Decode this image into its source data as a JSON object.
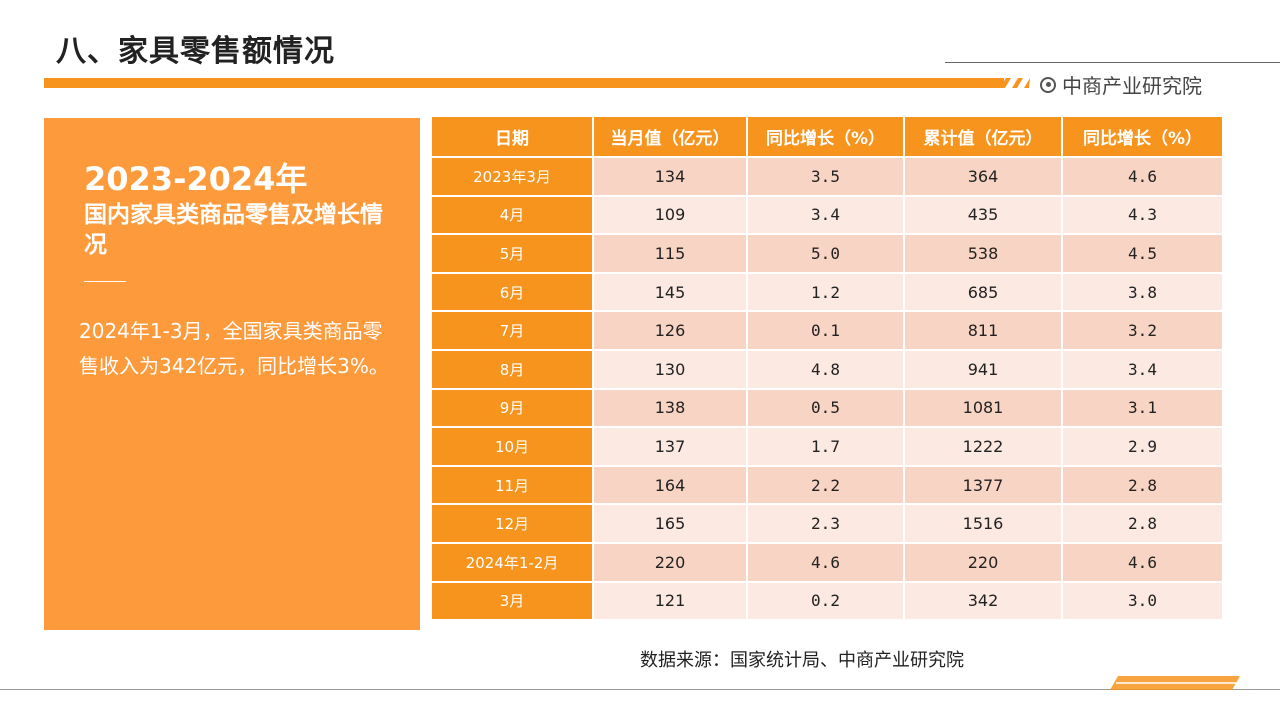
{
  "header": {
    "title": "八、家具零售额情况",
    "brand": "中商产业研究院"
  },
  "panel": {
    "years": "2023-2024年",
    "subtitle": "国内家具类商品零售及增长情况",
    "body": "2024年1-3月，全国家具类商品零售收入为342亿元，同比增长3%。"
  },
  "table": {
    "headers": [
      "日期",
      "当月值（亿元）",
      "同比增长（%）",
      "累计值（亿元）",
      "同比增长（%）"
    ],
    "rows": [
      [
        "2023年3月",
        "134",
        "3.5",
        "364",
        "4.6"
      ],
      [
        "4月",
        "109",
        "3.4",
        "435",
        "4.3"
      ],
      [
        "5月",
        "115",
        "5.0",
        "538",
        "4.5"
      ],
      [
        "6月",
        "145",
        "1.2",
        "685",
        "3.8"
      ],
      [
        "7月",
        "126",
        "0.1",
        "811",
        "3.2"
      ],
      [
        "8月",
        "130",
        "4.8",
        "941",
        "3.4"
      ],
      [
        "9月",
        "138",
        "0.5",
        "1081",
        "3.1"
      ],
      [
        "10月",
        "137",
        "1.7",
        "1222",
        "2.9"
      ],
      [
        "11月",
        "164",
        "2.2",
        "1377",
        "2.8"
      ],
      [
        "12月",
        "165",
        "2.3",
        "1516",
        "2.8"
      ],
      [
        "2024年1-2月",
        "220",
        "4.6",
        "220",
        "4.6"
      ],
      [
        "3月",
        "121",
        "0.2",
        "342",
        "3.0"
      ]
    ]
  },
  "source": "数据来源：国家统计局、中商产业研究院",
  "colors": {
    "accent": "#f7941d",
    "panel": "#fd9a3b",
    "row_dark": "#f8d4c4",
    "row_light": "#fbe9e2"
  }
}
